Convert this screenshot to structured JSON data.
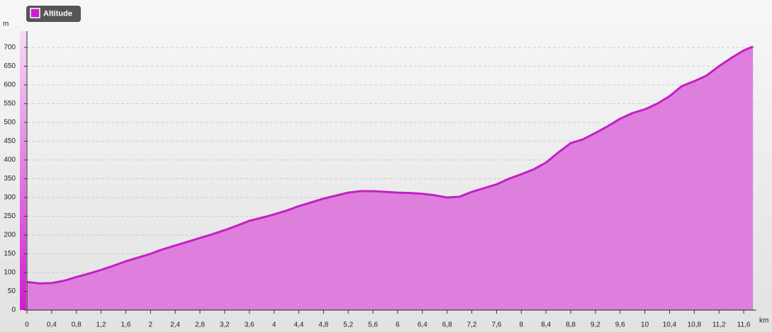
{
  "chart_data": {
    "type": "area",
    "legend": "Altitude",
    "y_label": "m",
    "x_label": "km",
    "color": "#c51fc5",
    "fill": "#de7fde",
    "x": [
      0,
      0.2,
      0.4,
      0.6,
      0.8,
      1.0,
      1.2,
      1.4,
      1.6,
      1.8,
      2.0,
      2.2,
      2.4,
      2.6,
      2.8,
      3.0,
      3.2,
      3.4,
      3.6,
      3.8,
      4.0,
      4.2,
      4.4,
      4.6,
      4.8,
      5.0,
      5.2,
      5.4,
      5.6,
      5.8,
      6.0,
      6.2,
      6.4,
      6.6,
      6.8,
      7.0,
      7.2,
      7.4,
      7.6,
      7.8,
      8.0,
      8.2,
      8.4,
      8.6,
      8.8,
      9.0,
      9.2,
      9.4,
      9.6,
      9.8,
      10.0,
      10.2,
      10.4,
      10.6,
      10.8,
      11.0,
      11.2,
      11.4,
      11.6,
      11.75
    ],
    "values": [
      75,
      71,
      72,
      78,
      88,
      97,
      107,
      118,
      130,
      140,
      150,
      162,
      172,
      182,
      192,
      202,
      213,
      225,
      238,
      246,
      255,
      265,
      277,
      287,
      297,
      305,
      313,
      317,
      317,
      315,
      313,
      312,
      310,
      306,
      300,
      302,
      315,
      325,
      335,
      350,
      362,
      375,
      393,
      420,
      445,
      455,
      472,
      490,
      510,
      525,
      535,
      550,
      570,
      597,
      610,
      625,
      650,
      672,
      692,
      702
    ],
    "xlim": [
      0,
      11.8
    ],
    "ylim": [
      0,
      750
    ],
    "xticks": [
      0,
      {
        "value": 0.4,
        "label": "0,4"
      },
      {
        "value": 0.8,
        "label": "0,8"
      },
      {
        "value": 1.2,
        "label": "1,2"
      },
      {
        "value": 1.6,
        "label": "1,6"
      },
      2,
      {
        "value": 2.4,
        "label": "2,4"
      },
      {
        "value": 2.8,
        "label": "2,8"
      },
      {
        "value": 3.2,
        "label": "3,2"
      },
      {
        "value": 3.6,
        "label": "3,6"
      },
      4,
      {
        "value": 4.4,
        "label": "4,4"
      },
      {
        "value": 4.8,
        "label": "4,8"
      },
      {
        "value": 5.2,
        "label": "5,2"
      },
      {
        "value": 5.6,
        "label": "5,6"
      },
      6,
      {
        "value": 6.4,
        "label": "6,4"
      },
      {
        "value": 6.8,
        "label": "6,8"
      },
      {
        "value": 7.2,
        "label": "7,2"
      },
      {
        "value": 7.6,
        "label": "7,6"
      },
      8,
      {
        "value": 8.4,
        "label": "8,4"
      },
      {
        "value": 8.8,
        "label": "8,8"
      },
      {
        "value": 9.2,
        "label": "9,2"
      },
      {
        "value": 9.6,
        "label": "9,6"
      },
      10,
      {
        "value": 10.4,
        "label": "10,4"
      },
      {
        "value": 10.8,
        "label": "10,8"
      },
      {
        "value": 11.2,
        "label": "11,2"
      },
      {
        "value": 11.6,
        "label": "11,6"
      }
    ],
    "yticks": [
      0,
      50,
      100,
      150,
      200,
      250,
      300,
      350,
      400,
      450,
      500,
      550,
      600,
      650,
      700
    ],
    "grid": true
  }
}
